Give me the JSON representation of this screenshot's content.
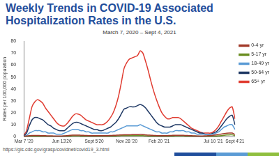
{
  "chart_data": {
    "type": "line",
    "title": "Weekly Trends in COVID-19 Associated Hospitalization Rates in the U.S.",
    "subtitle": "March 7, 2020 – Sept 4, 2021",
    "ylabel": "Rates per 100,000 population",
    "source": "https://gis.cdc.gov/grasp/covidnet/covid19_3.html",
    "categories": [
      "Mar 7 '20",
      null,
      null,
      null,
      null,
      null,
      null,
      null,
      null,
      null,
      null,
      null,
      null,
      null,
      "Jun 13'20",
      null,
      null,
      null,
      null,
      null,
      null,
      null,
      null,
      null,
      null,
      null,
      "Sept 5'20",
      null,
      null,
      null,
      null,
      null,
      null,
      null,
      null,
      null,
      null,
      null,
      "Nov 28 '20",
      null,
      null,
      null,
      null,
      null,
      null,
      null,
      null,
      null,
      null,
      null,
      "Feb 20 '21",
      null,
      null,
      null,
      null,
      null,
      null,
      null,
      null,
      null,
      null,
      null,
      null,
      null,
      null,
      null,
      null,
      null,
      null,
      null,
      "Jul 10 '21",
      null,
      null,
      null,
      null,
      null,
      null,
      null,
      "Sept 4'21"
    ],
    "series": [
      {
        "name": "0-4 yr",
        "color": "#a23b2a",
        "values": [
          0.3,
          0.5,
          0.8,
          1,
          1,
          1,
          0.9,
          0.8,
          0.8,
          0.7,
          0.7,
          0.6,
          0.6,
          0.6,
          0.6,
          0.7,
          0.9,
          1.1,
          1.3,
          1.3,
          1.3,
          1.2,
          1.1,
          1,
          0.9,
          0.9,
          0.8,
          0.8,
          0.8,
          0.8,
          0.8,
          0.9,
          1,
          1.1,
          1.2,
          1.3,
          1.5,
          1.6,
          1.6,
          1.6,
          1.7,
          1.7,
          1.7,
          1.8,
          1.7,
          1.5,
          1.3,
          1.2,
          1,
          0.9,
          0.8,
          0.8,
          0.8,
          0.9,
          1,
          1.1,
          1.2,
          1.2,
          1.2,
          1.1,
          1,
          0.9,
          0.8,
          0.7,
          0.6,
          0.6,
          0.6,
          0.7,
          0.8,
          0.9,
          1.1,
          1.4,
          1.8,
          2.2,
          2.6,
          2.9,
          3,
          3,
          1.8
        ]
      },
      {
        "name": "5-17 yr",
        "color": "#6b8e23",
        "values": [
          0,
          0.1,
          0.2,
          0.3,
          0.3,
          0.3,
          0.3,
          0.3,
          0.3,
          0.3,
          0.3,
          0.3,
          0.3,
          0.3,
          0.3,
          0.4,
          0.5,
          0.6,
          0.7,
          0.7,
          0.7,
          0.6,
          0.6,
          0.5,
          0.5,
          0.5,
          0.4,
          0.4,
          0.4,
          0.4,
          0.4,
          0.4,
          0.5,
          0.5,
          0.6,
          0.7,
          0.8,
          0.8,
          0.8,
          0.8,
          0.8,
          0.8,
          0.8,
          0.8,
          0.8,
          0.7,
          0.6,
          0.6,
          0.5,
          0.5,
          0.4,
          0.4,
          0.4,
          0.4,
          0.5,
          0.6,
          0.7,
          0.7,
          0.7,
          0.7,
          0.6,
          0.5,
          0.5,
          0.4,
          0.4,
          0.3,
          0.3,
          0.3,
          0.3,
          0.3,
          0.4,
          0.5,
          0.7,
          0.9,
          1.2,
          1.4,
          1.5,
          1.5,
          0.9
        ]
      },
      {
        "name": "18-49 yr",
        "color": "#5b9bd5",
        "values": [
          0.2,
          1,
          3,
          4,
          5,
          5,
          5,
          4,
          4,
          3,
          3,
          3,
          2,
          2,
          2,
          3,
          4,
          5,
          6,
          6,
          6,
          5,
          5,
          4,
          4,
          3,
          3,
          3,
          3,
          3,
          3,
          3,
          4,
          4,
          5,
          6,
          7,
          8,
          9,
          9,
          9,
          9,
          9,
          10,
          9,
          8,
          7,
          6,
          5,
          4,
          4,
          3,
          3,
          3,
          4,
          4,
          5,
          5,
          5,
          5,
          4,
          4,
          3,
          3,
          2,
          2,
          2,
          2,
          2,
          2,
          2,
          3,
          4,
          6,
          8,
          9,
          10,
          10,
          6
        ]
      },
      {
        "name": "50-64 yr",
        "color": "#1f3864",
        "values": [
          0.5,
          3,
          9,
          14,
          16,
          16,
          15,
          14,
          12,
          10,
          9,
          7,
          6,
          5,
          5,
          5,
          7,
          9,
          11,
          12,
          12,
          11,
          10,
          9,
          8,
          7,
          6,
          6,
          5,
          5,
          6,
          7,
          8,
          10,
          12,
          15,
          19,
          23,
          24,
          25,
          25,
          25,
          26,
          27,
          26,
          24,
          21,
          18,
          15,
          12,
          10,
          9,
          8,
          8,
          8,
          9,
          10,
          10,
          10,
          9,
          8,
          7,
          6,
          5,
          4,
          3,
          3,
          2,
          2,
          2,
          3,
          4,
          6,
          9,
          12,
          15,
          17,
          18,
          10
        ]
      },
      {
        "name": "65+ yr",
        "color": "#e03c31",
        "values": [
          1,
          5,
          15,
          25,
          29,
          31,
          30,
          28,
          24,
          21,
          18,
          15,
          12,
          10,
          9,
          9,
          11,
          14,
          17,
          19,
          19,
          18,
          16,
          14,
          13,
          12,
          11,
          10,
          10,
          10,
          11,
          13,
          16,
          20,
          26,
          34,
          45,
          57,
          62,
          65,
          66,
          67,
          68,
          72,
          70,
          63,
          55,
          46,
          38,
          31,
          25,
          20,
          17,
          15,
          15,
          16,
          16,
          16,
          15,
          13,
          11,
          9,
          7,
          6,
          5,
          4,
          3,
          3,
          3,
          3,
          4,
          6,
          9,
          13,
          17,
          21,
          24,
          25,
          15
        ]
      }
    ],
    "ylim": [
      0,
      80
    ],
    "yticks": [
      0,
      10,
      20,
      30,
      40,
      50,
      60,
      70,
      80
    ],
    "grid": false,
    "legend": "right"
  }
}
